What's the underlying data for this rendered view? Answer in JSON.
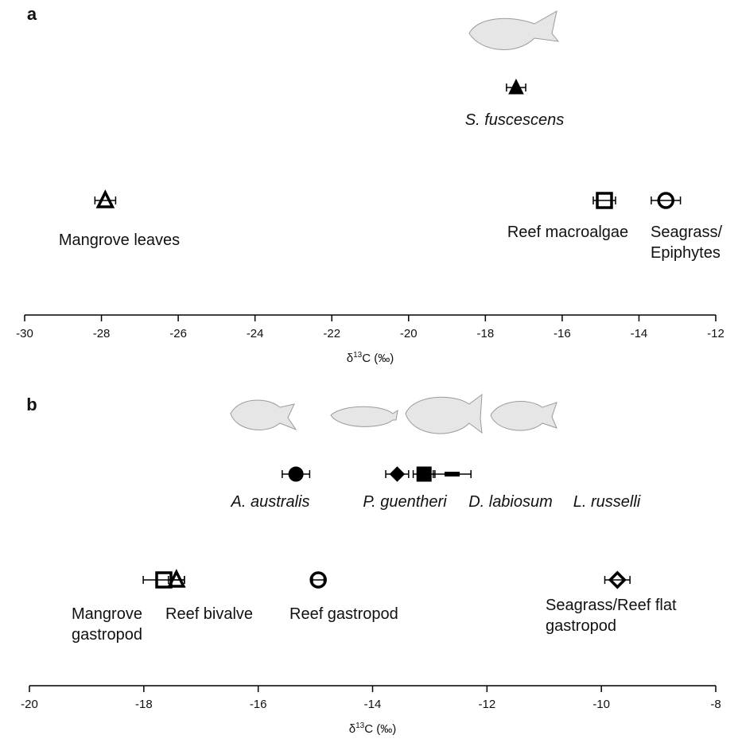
{
  "chart_data": [
    {
      "type": "scatter",
      "panel_label": "a",
      "xlabel": {
        "symbol": "δ",
        "superscript": "13",
        "rest": "C (‰)"
      },
      "xlim": [
        -30,
        -12
      ],
      "xticks": [
        -30,
        -28,
        -26,
        -24,
        -22,
        -20,
        -18,
        -16,
        -14,
        -12
      ],
      "color": "#000000",
      "consumers": {
        "italic": true,
        "points": [
          {
            "label": [
              "S. fuscescens"
            ],
            "x": -17.2,
            "xerr": 0.25,
            "marker": "triangle",
            "filled": true
          }
        ]
      },
      "sources": {
        "italic": false,
        "points": [
          {
            "label": [
              "Mangrove leaves"
            ],
            "x": -27.9,
            "xerr": 0.27,
            "marker": "triangle",
            "filled": false
          },
          {
            "label": [
              "Reef macroalgae"
            ],
            "x": -14.9,
            "xerr": 0.29,
            "marker": "square",
            "filled": false
          },
          {
            "label": [
              "Seagrass/",
              "Epiphytes"
            ],
            "x": -13.3,
            "xerr": 0.38,
            "marker": "circle",
            "filled": false
          }
        ]
      }
    },
    {
      "type": "scatter",
      "panel_label": "b",
      "xlabel": {
        "symbol": "δ",
        "superscript": "13",
        "rest": "C (‰)"
      },
      "xlim": [
        -20,
        -8
      ],
      "xticks": [
        -20,
        -18,
        -16,
        -14,
        -12,
        -10,
        -8
      ],
      "color": "#000000",
      "consumers": {
        "italic": true,
        "points": [
          {
            "label": [
              "A. australis"
            ],
            "x": -15.34,
            "xerr": 0.24,
            "marker": "circle",
            "filled": true
          },
          {
            "label": [
              "P. guentheri"
            ],
            "x": -13.57,
            "xerr": 0.2,
            "marker": "diamond",
            "filled": true
          },
          {
            "label": [
              "D. labiosum"
            ],
            "x": -13.1,
            "xerr": 0.19,
            "marker": "square",
            "filled": true
          },
          {
            "label": [
              "L. russelli"
            ],
            "x": -12.61,
            "xerr": 0.33,
            "marker": "dash",
            "filled": true
          }
        ]
      },
      "sources": {
        "italic": false,
        "points": [
          {
            "label": [
              "Mangrove",
              "gastropod"
            ],
            "x": -17.65,
            "xerr": 0.36,
            "marker": "square",
            "filled": false
          },
          {
            "label": [
              "Reef bivalve"
            ],
            "x": -17.43,
            "xerr": 0.14,
            "marker": "triangle",
            "filled": false
          },
          {
            "label": [
              "Reef gastropod"
            ],
            "x": -14.95,
            "xerr": 0.1,
            "marker": "circle",
            "filled": false
          },
          {
            "label": [
              "Seagrass/Reef flat",
              "gastropod"
            ],
            "x": -9.72,
            "xerr": 0.22,
            "marker": "diamond",
            "filled": false
          }
        ]
      }
    }
  ]
}
